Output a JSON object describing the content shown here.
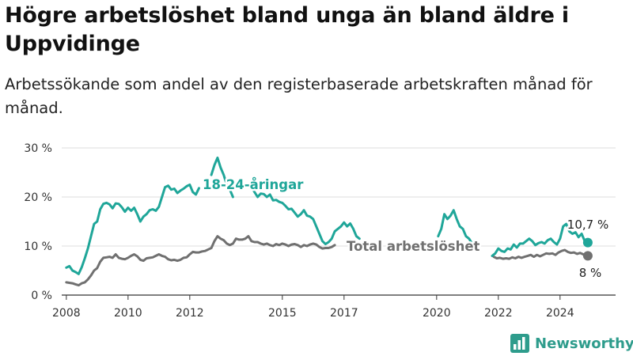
{
  "title": "Högre arbetslöshet bland unga än bland äldre i Uppvidinge",
  "subtitle": "Arbetssökande som andel av den registerbaserade arbetskraften månad för månad.",
  "brand": {
    "name": "Newsworthy",
    "icon": "bar-chart-logo-icon",
    "color": "#2e9c8c"
  },
  "colors": {
    "youth": "#1fa699",
    "total": "#707070",
    "grid": "#dddddd",
    "axis": "#333333"
  },
  "chart_data": {
    "type": "line",
    "xlim": [
      2007.85,
      2025.8
    ],
    "ylim": [
      0,
      30
    ],
    "y_ticks": [
      {
        "value": 0,
        "label": "0 %"
      },
      {
        "value": 10,
        "label": "10 %"
      },
      {
        "value": 20,
        "label": "20 %"
      },
      {
        "value": 30,
        "label": "30 %"
      }
    ],
    "x_ticks": [
      {
        "value": 2008,
        "label": "2008"
      },
      {
        "value": 2010,
        "label": "2010"
      },
      {
        "value": 2012,
        "label": "2012"
      },
      {
        "value": 2015,
        "label": "2015"
      },
      {
        "value": 2017,
        "label": "2017"
      },
      {
        "value": 2020,
        "label": "2020"
      },
      {
        "value": 2022,
        "label": "2022"
      },
      {
        "value": 2024,
        "label": "2024"
      }
    ],
    "grid": true,
    "series": [
      {
        "name": "18-24-åringar",
        "color": "#1fa699",
        "end_label": "10,7 %",
        "end_value": 10.7,
        "points": [
          [
            2008.0,
            5.6
          ],
          [
            2008.1,
            5.9
          ],
          [
            2008.2,
            5.0
          ],
          [
            2008.3,
            4.7
          ],
          [
            2008.4,
            4.3
          ],
          [
            2008.5,
            5.7
          ],
          [
            2008.6,
            7.5
          ],
          [
            2008.7,
            9.5
          ],
          [
            2008.8,
            12.0
          ],
          [
            2008.9,
            14.5
          ],
          [
            2009.0,
            15.0
          ],
          [
            2009.1,
            17.5
          ],
          [
            2009.2,
            18.6
          ],
          [
            2009.3,
            18.8
          ],
          [
            2009.4,
            18.5
          ],
          [
            2009.5,
            17.7
          ],
          [
            2009.6,
            18.7
          ],
          [
            2009.7,
            18.6
          ],
          [
            2009.8,
            17.9
          ],
          [
            2009.9,
            17.0
          ],
          [
            2010.0,
            17.8
          ],
          [
            2010.1,
            17.2
          ],
          [
            2010.2,
            17.8
          ],
          [
            2010.3,
            16.5
          ],
          [
            2010.4,
            15.0
          ],
          [
            2010.5,
            16.0
          ],
          [
            2010.6,
            16.5
          ],
          [
            2010.7,
            17.3
          ],
          [
            2010.8,
            17.5
          ],
          [
            2010.9,
            17.2
          ],
          [
            2011.0,
            18.0
          ],
          [
            2011.1,
            20.0
          ],
          [
            2011.2,
            22.0
          ],
          [
            2011.3,
            22.3
          ],
          [
            2011.4,
            21.5
          ],
          [
            2011.5,
            21.7
          ],
          [
            2011.6,
            20.8
          ],
          [
            2011.7,
            21.3
          ],
          [
            2011.8,
            21.7
          ],
          [
            2011.9,
            22.2
          ],
          [
            2012.0,
            22.5
          ],
          [
            2012.1,
            21.0
          ],
          [
            2012.2,
            20.5
          ],
          [
            2012.3,
            21.8
          ],
          [
            2012.7,
            24.5
          ],
          [
            2012.8,
            26.5
          ],
          [
            2012.9,
            28.0
          ],
          [
            2013.0,
            26.0
          ],
          [
            2013.1,
            24.5
          ],
          [
            2013.2,
            22.5
          ],
          [
            2013.3,
            21.5
          ],
          [
            2013.4,
            20.0
          ],
          [
            2014.0,
            22.0
          ],
          [
            2014.1,
            21.0
          ],
          [
            2014.2,
            20.0
          ],
          [
            2014.3,
            20.7
          ],
          [
            2014.4,
            20.6
          ],
          [
            2014.5,
            20.0
          ],
          [
            2014.6,
            20.5
          ],
          [
            2014.7,
            19.3
          ],
          [
            2014.8,
            19.4
          ],
          [
            2014.9,
            19.0
          ],
          [
            2015.0,
            18.8
          ],
          [
            2015.1,
            18.2
          ],
          [
            2015.2,
            17.5
          ],
          [
            2015.3,
            17.6
          ],
          [
            2015.4,
            16.8
          ],
          [
            2015.5,
            16.0
          ],
          [
            2015.6,
            16.5
          ],
          [
            2015.7,
            17.3
          ],
          [
            2015.8,
            16.2
          ],
          [
            2015.9,
            16.0
          ],
          [
            2016.0,
            15.5
          ],
          [
            2016.1,
            14.0
          ],
          [
            2016.2,
            12.5
          ],
          [
            2016.3,
            11.0
          ],
          [
            2016.4,
            10.4
          ],
          [
            2016.5,
            10.8
          ],
          [
            2016.6,
            11.5
          ],
          [
            2016.7,
            13.0
          ],
          [
            2016.8,
            13.5
          ],
          [
            2016.9,
            14.0
          ],
          [
            2017.0,
            14.8
          ],
          [
            2017.1,
            14.0
          ],
          [
            2017.2,
            14.6
          ],
          [
            2017.3,
            13.5
          ],
          [
            2017.4,
            12.0
          ],
          [
            2017.5,
            11.5
          ],
          [
            2020.05,
            12.0
          ],
          [
            2020.15,
            13.5
          ],
          [
            2020.25,
            16.5
          ],
          [
            2020.35,
            15.5
          ],
          [
            2020.45,
            16.2
          ],
          [
            2020.55,
            17.3
          ],
          [
            2020.65,
            15.5
          ],
          [
            2020.75,
            14.0
          ],
          [
            2020.85,
            13.5
          ],
          [
            2020.95,
            12.0
          ],
          [
            2021.05,
            11.5
          ],
          [
            2021.15,
            10.5
          ],
          [
            2021.25,
            10.0
          ],
          [
            2021.8,
            8.0
          ],
          [
            2021.9,
            8.5
          ],
          [
            2022.0,
            9.5
          ],
          [
            2022.1,
            9.0
          ],
          [
            2022.2,
            8.8
          ],
          [
            2022.3,
            9.5
          ],
          [
            2022.4,
            9.3
          ],
          [
            2022.5,
            10.3
          ],
          [
            2022.6,
            9.7
          ],
          [
            2022.7,
            10.5
          ],
          [
            2022.8,
            10.5
          ],
          [
            2022.9,
            11.0
          ],
          [
            2023.0,
            11.5
          ],
          [
            2023.1,
            11.0
          ],
          [
            2023.2,
            10.2
          ],
          [
            2023.3,
            10.6
          ],
          [
            2023.4,
            10.8
          ],
          [
            2023.5,
            10.5
          ],
          [
            2023.6,
            11.2
          ],
          [
            2023.7,
            11.5
          ],
          [
            2023.8,
            10.8
          ],
          [
            2023.9,
            10.3
          ],
          [
            2024.0,
            11.5
          ],
          [
            2024.1,
            14.0
          ],
          [
            2024.2,
            14.5
          ],
          [
            2024.3,
            13.0
          ],
          [
            2024.4,
            12.5
          ],
          [
            2024.5,
            12.8
          ],
          [
            2024.6,
            11.8
          ],
          [
            2024.7,
            12.5
          ],
          [
            2024.8,
            11.0
          ],
          [
            2024.9,
            10.7
          ]
        ]
      },
      {
        "name": "Total arbetslöshet",
        "color": "#707070",
        "end_label": "8 %",
        "end_value": 8.0,
        "points": [
          [
            2008.0,
            2.6
          ],
          [
            2008.1,
            2.5
          ],
          [
            2008.2,
            2.4
          ],
          [
            2008.3,
            2.2
          ],
          [
            2008.4,
            2.0
          ],
          [
            2008.5,
            2.4
          ],
          [
            2008.6,
            2.6
          ],
          [
            2008.7,
            3.2
          ],
          [
            2008.8,
            4.0
          ],
          [
            2008.9,
            5.0
          ],
          [
            2009.0,
            5.5
          ],
          [
            2009.1,
            6.8
          ],
          [
            2009.2,
            7.6
          ],
          [
            2009.3,
            7.7
          ],
          [
            2009.4,
            7.8
          ],
          [
            2009.5,
            7.6
          ],
          [
            2009.6,
            8.3
          ],
          [
            2009.7,
            7.6
          ],
          [
            2009.8,
            7.4
          ],
          [
            2009.9,
            7.3
          ],
          [
            2010.0,
            7.6
          ],
          [
            2010.1,
            8.0
          ],
          [
            2010.2,
            8.3
          ],
          [
            2010.3,
            7.9
          ],
          [
            2010.4,
            7.2
          ],
          [
            2010.5,
            7.0
          ],
          [
            2010.6,
            7.5
          ],
          [
            2010.7,
            7.6
          ],
          [
            2010.8,
            7.7
          ],
          [
            2010.9,
            8.0
          ],
          [
            2011.0,
            8.3
          ],
          [
            2011.1,
            8.0
          ],
          [
            2011.2,
            7.8
          ],
          [
            2011.3,
            7.3
          ],
          [
            2011.4,
            7.1
          ],
          [
            2011.5,
            7.2
          ],
          [
            2011.6,
            7.0
          ],
          [
            2011.7,
            7.2
          ],
          [
            2011.8,
            7.6
          ],
          [
            2011.9,
            7.7
          ],
          [
            2012.0,
            8.3
          ],
          [
            2012.1,
            8.8
          ],
          [
            2012.2,
            8.7
          ],
          [
            2012.3,
            8.7
          ],
          [
            2012.4,
            8.9
          ],
          [
            2012.5,
            9.0
          ],
          [
            2012.6,
            9.3
          ],
          [
            2012.7,
            9.6
          ],
          [
            2012.8,
            11.0
          ],
          [
            2012.9,
            12.0
          ],
          [
            2013.0,
            11.5
          ],
          [
            2013.1,
            11.2
          ],
          [
            2013.2,
            10.5
          ],
          [
            2013.3,
            10.2
          ],
          [
            2013.4,
            10.5
          ],
          [
            2013.5,
            11.5
          ],
          [
            2013.6,
            11.3
          ],
          [
            2013.7,
            11.3
          ],
          [
            2013.8,
            11.5
          ],
          [
            2013.9,
            12.0
          ],
          [
            2014.0,
            11.0
          ],
          [
            2014.1,
            10.8
          ],
          [
            2014.2,
            10.8
          ],
          [
            2014.3,
            10.5
          ],
          [
            2014.4,
            10.3
          ],
          [
            2014.5,
            10.5
          ],
          [
            2014.6,
            10.2
          ],
          [
            2014.7,
            10.0
          ],
          [
            2014.8,
            10.4
          ],
          [
            2014.9,
            10.2
          ],
          [
            2015.0,
            10.5
          ],
          [
            2015.1,
            10.3
          ],
          [
            2015.2,
            10.0
          ],
          [
            2015.3,
            10.3
          ],
          [
            2015.4,
            10.4
          ],
          [
            2015.5,
            10.2
          ],
          [
            2015.6,
            9.8
          ],
          [
            2015.7,
            10.2
          ],
          [
            2015.8,
            10.0
          ],
          [
            2015.9,
            10.3
          ],
          [
            2016.0,
            10.5
          ],
          [
            2016.1,
            10.3
          ],
          [
            2016.2,
            9.8
          ],
          [
            2016.3,
            9.5
          ],
          [
            2016.4,
            9.6
          ],
          [
            2016.5,
            9.6
          ],
          [
            2016.6,
            9.8
          ],
          [
            2016.7,
            10.2
          ],
          [
            2021.85,
            7.8
          ],
          [
            2021.95,
            7.5
          ],
          [
            2022.05,
            7.6
          ],
          [
            2022.15,
            7.4
          ],
          [
            2022.25,
            7.5
          ],
          [
            2022.35,
            7.4
          ],
          [
            2022.45,
            7.7
          ],
          [
            2022.55,
            7.5
          ],
          [
            2022.65,
            7.8
          ],
          [
            2022.75,
            7.6
          ],
          [
            2022.85,
            7.8
          ],
          [
            2022.95,
            8.0
          ],
          [
            2023.05,
            8.2
          ],
          [
            2023.15,
            7.8
          ],
          [
            2023.25,
            8.2
          ],
          [
            2023.35,
            7.9
          ],
          [
            2023.45,
            8.2
          ],
          [
            2023.55,
            8.5
          ],
          [
            2023.65,
            8.4
          ],
          [
            2023.75,
            8.5
          ],
          [
            2023.85,
            8.2
          ],
          [
            2023.95,
            8.7
          ],
          [
            2024.05,
            9.0
          ],
          [
            2024.15,
            9.2
          ],
          [
            2024.25,
            8.8
          ],
          [
            2024.35,
            8.6
          ],
          [
            2024.45,
            8.7
          ],
          [
            2024.55,
            8.4
          ],
          [
            2024.65,
            8.6
          ],
          [
            2024.75,
            8.3
          ],
          [
            2024.85,
            8.0
          ],
          [
            2024.9,
            8.0
          ]
        ]
      }
    ]
  }
}
